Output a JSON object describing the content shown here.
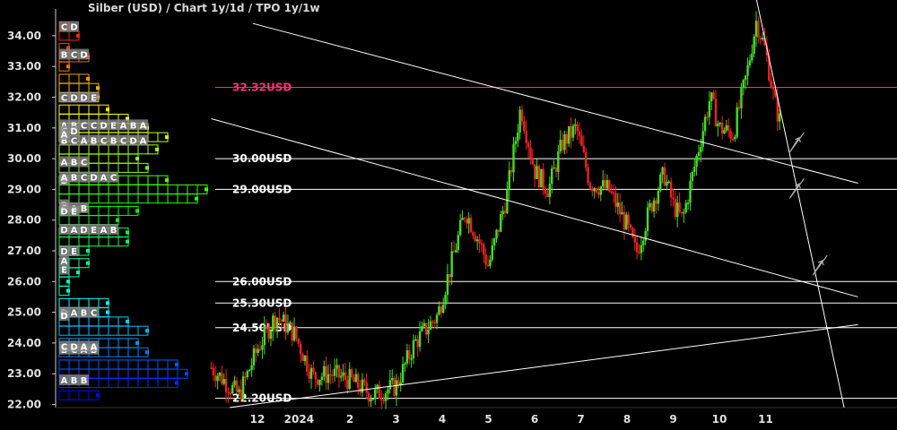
{
  "title": "Silber (USD) /  Chart 1y/1d / TPO 1y/1w",
  "colors": {
    "background": "#000000",
    "axis": "#cccccc",
    "text": "#e0e0e0",
    "resistance": "#ff2d7a",
    "level": "#ffffff",
    "candle_up": "#44dd22",
    "candle_down": "#ee2222",
    "trendline": "#ffffff"
  },
  "chart_data": {
    "type": "candlestick",
    "ylim": [
      21.9,
      35.2
    ],
    "y_ticks": [
      "22.00",
      "23.00",
      "24.00",
      "25.00",
      "26.00",
      "27.00",
      "28.00",
      "29.00",
      "30.00",
      "31.00",
      "32.00",
      "33.00",
      "34.00"
    ],
    "x_ticks": [
      "12",
      "2024",
      "2",
      "3",
      "4",
      "5",
      "6",
      "7",
      "8",
      "9",
      "10",
      "11"
    ],
    "grid": false,
    "levels": [
      {
        "label": "32.32USD",
        "value": 32.32,
        "color": "#ff2d7a"
      },
      {
        "label": "30.00USD",
        "value": 30.0,
        "color": "#ffffff"
      },
      {
        "label": "29.00USD",
        "value": 29.0,
        "color": "#ffffff"
      },
      {
        "label": "26.00USD",
        "value": 26.0,
        "color": "#ffffff"
      },
      {
        "label": "25.30USD",
        "value": 25.3,
        "color": "#ffffff"
      },
      {
        "label": "24.50USD",
        "value": 24.5,
        "color": "#ffffff"
      },
      {
        "label": "22.20USD",
        "value": 22.2,
        "color": "#ffffff"
      }
    ],
    "price_path": [
      {
        "month": 11.0,
        "price": 23.2
      },
      {
        "month": 11.6,
        "price": 22.3
      },
      {
        "month": 12.0,
        "price": 23.8
      },
      {
        "month": 12.4,
        "price": 24.9
      },
      {
        "month": 12.8,
        "price": 24.3
      },
      {
        "month": 13.2,
        "price": 22.9
      },
      {
        "month": 13.6,
        "price": 23.0
      },
      {
        "month": 14.0,
        "price": 22.8
      },
      {
        "month": 14.5,
        "price": 22.3
      },
      {
        "month": 15.0,
        "price": 22.6
      },
      {
        "month": 15.4,
        "price": 24.0
      },
      {
        "month": 15.9,
        "price": 24.9
      },
      {
        "month": 16.2,
        "price": 26.6
      },
      {
        "month": 16.5,
        "price": 28.3
      },
      {
        "month": 16.8,
        "price": 27.3
      },
      {
        "month": 17.0,
        "price": 26.5
      },
      {
        "month": 17.4,
        "price": 28.8
      },
      {
        "month": 17.7,
        "price": 31.7
      },
      {
        "month": 18.0,
        "price": 29.6
      },
      {
        "month": 18.3,
        "price": 29.0
      },
      {
        "month": 18.6,
        "price": 30.5
      },
      {
        "month": 18.9,
        "price": 31.0
      },
      {
        "month": 19.2,
        "price": 29.2
      },
      {
        "month": 19.6,
        "price": 29.0
      },
      {
        "month": 20.0,
        "price": 27.8
      },
      {
        "month": 20.2,
        "price": 26.9
      },
      {
        "month": 20.5,
        "price": 28.4
      },
      {
        "month": 20.8,
        "price": 29.5
      },
      {
        "month": 21.0,
        "price": 28.5
      },
      {
        "month": 21.2,
        "price": 28.0
      },
      {
        "month": 21.5,
        "price": 30.0
      },
      {
        "month": 21.8,
        "price": 32.0
      },
      {
        "month": 22.0,
        "price": 31.0
      },
      {
        "month": 22.3,
        "price": 30.8
      },
      {
        "month": 22.6,
        "price": 32.8
      },
      {
        "month": 22.8,
        "price": 34.5
      },
      {
        "month": 23.0,
        "price": 33.5
      },
      {
        "month": 23.2,
        "price": 31.8
      },
      {
        "month": 23.35,
        "price": 31.0
      }
    ],
    "tpo_profile": [
      {
        "price": 34.3,
        "letters": "C"
      },
      {
        "price": 34.0,
        "letters": "CD"
      },
      {
        "price": 33.6,
        "letters": "C"
      },
      {
        "price": 33.3,
        "letters": "BCD"
      },
      {
        "price": 33.0,
        "letters": "B"
      },
      {
        "price": 32.6,
        "letters": "CDE"
      },
      {
        "price": 32.3,
        "letters": "BCDE"
      },
      {
        "price": 32.0,
        "letters": "CDDE"
      },
      {
        "price": 31.6,
        "letters": "BCDEA"
      },
      {
        "price": 31.3,
        "letters": "ABCDEAB"
      },
      {
        "price": 31.0,
        "letters": "ABCCDEABA"
      },
      {
        "price": 30.7,
        "letters": "BCDAABCBCDA"
      },
      {
        "price": 30.3,
        "letters": "ABCDAABCDA"
      },
      {
        "price": 30.0,
        "letters": "ABCDABCD"
      },
      {
        "price": 29.7,
        "letters": "ABCBCDACA"
      },
      {
        "price": 29.3,
        "letters": "ABCABCDACAB"
      },
      {
        "price": 29.0,
        "letters": "ABCDABCDACABCAB"
      },
      {
        "price": 28.7,
        "letters": "ABCDABCDACABCA"
      },
      {
        "price": 28.3,
        "letters": "BCABDEAB"
      },
      {
        "price": 28.0,
        "letters": "BCABDE"
      },
      {
        "price": 27.6,
        "letters": "ADADEAB"
      },
      {
        "price": 27.3,
        "letters": "ADADEAB"
      },
      {
        "price": 27.0,
        "letters": "ADE"
      },
      {
        "price": 26.6,
        "letters": "ADE"
      },
      {
        "price": 26.3,
        "letters": "AE"
      },
      {
        "price": 26.0,
        "letters": "A"
      },
      {
        "price": 25.7,
        "letters": "A"
      },
      {
        "price": 25.3,
        "letters": "DABCD"
      },
      {
        "price": 25.0,
        "letters": "DABCD"
      },
      {
        "price": 24.7,
        "letters": "DABCDAA"
      },
      {
        "price": 24.4,
        "letters": "BCABCDAAB"
      },
      {
        "price": 24.0,
        "letters": "BCABCDAA"
      },
      {
        "price": 23.7,
        "letters": "BCABCDAAB"
      },
      {
        "price": 23.3,
        "letters": "ABABCDAABCDE"
      },
      {
        "price": 23.0,
        "letters": "ABBCDAABCDEAB"
      },
      {
        "price": 22.7,
        "letters": "ABBCDAABCDEA"
      },
      {
        "price": 22.3,
        "letters": "ABBC"
      }
    ],
    "tpo_visible_labels": [
      {
        "price": 34.3,
        "text": "C"
      },
      {
        "price": 34.3,
        "text": "D"
      },
      {
        "price": 33.4,
        "text": "B"
      },
      {
        "price": 33.4,
        "text": "C"
      },
      {
        "price": 33.4,
        "text": "D"
      },
      {
        "price": 32.0,
        "text": "C"
      },
      {
        "price": 32.0,
        "text": "D"
      },
      {
        "price": 32.0,
        "text": "D"
      },
      {
        "price": 32.0,
        "text": "E"
      },
      {
        "price": 31.1,
        "text": "A"
      },
      {
        "price": 31.1,
        "text": "B"
      },
      {
        "price": 31.1,
        "text": "C"
      },
      {
        "price": 31.1,
        "text": "C"
      },
      {
        "price": 31.1,
        "text": "D"
      },
      {
        "price": 31.1,
        "text": "E"
      },
      {
        "price": 31.1,
        "text": "A"
      },
      {
        "price": 31.1,
        "text": "B"
      },
      {
        "price": 31.1,
        "text": "A"
      },
      {
        "price": 30.6,
        "text": "B"
      },
      {
        "price": 30.9,
        "text": "C"
      },
      {
        "price": 30.9,
        "text": "D"
      },
      {
        "price": 30.8,
        "text": "A"
      },
      {
        "price": 30.6,
        "text": "C"
      },
      {
        "price": 30.6,
        "text": "A"
      },
      {
        "price": 30.6,
        "text": "B"
      },
      {
        "price": 30.6,
        "text": "C"
      },
      {
        "price": 30.6,
        "text": "B"
      },
      {
        "price": 30.6,
        "text": "C"
      },
      {
        "price": 30.6,
        "text": "D"
      },
      {
        "price": 30.6,
        "text": "A"
      },
      {
        "price": 29.9,
        "text": "A"
      },
      {
        "price": 29.9,
        "text": "B"
      },
      {
        "price": 29.9,
        "text": "C"
      },
      {
        "price": 29.3,
        "text": "B"
      },
      {
        "price": 29.4,
        "text": "A"
      },
      {
        "price": 29.4,
        "text": "B"
      },
      {
        "price": 29.4,
        "text": "C"
      },
      {
        "price": 29.4,
        "text": "D"
      },
      {
        "price": 29.4,
        "text": "A"
      },
      {
        "price": 29.4,
        "text": "C"
      },
      {
        "price": 28.5,
        "text": "B"
      },
      {
        "price": 28.4,
        "text": "C"
      },
      {
        "price": 28.4,
        "text": "A"
      },
      {
        "price": 28.4,
        "text": "B"
      },
      {
        "price": 28.3,
        "text": "D"
      },
      {
        "price": 28.3,
        "text": "E"
      },
      {
        "price": 27.7,
        "text": "D"
      },
      {
        "price": 27.7,
        "text": "A"
      },
      {
        "price": 27.7,
        "text": "D"
      },
      {
        "price": 27.7,
        "text": "E"
      },
      {
        "price": 27.7,
        "text": "A"
      },
      {
        "price": 27.7,
        "text": "B"
      },
      {
        "price": 27.0,
        "text": "D"
      },
      {
        "price": 27.0,
        "text": "E"
      },
      {
        "price": 26.7,
        "text": "A"
      },
      {
        "price": 26.4,
        "text": "E"
      },
      {
        "price": 25.0,
        "text": "D"
      },
      {
        "price": 25.0,
        "text": "A"
      },
      {
        "price": 25.0,
        "text": "B"
      },
      {
        "price": 25.0,
        "text": "C"
      },
      {
        "price": 24.9,
        "text": "D"
      },
      {
        "price": 23.8,
        "text": "B"
      },
      {
        "price": 23.8,
        "text": "C"
      },
      {
        "price": 23.8,
        "text": "A"
      },
      {
        "price": 23.8,
        "text": "B"
      },
      {
        "price": 23.9,
        "text": "C"
      },
      {
        "price": 23.9,
        "text": "D"
      },
      {
        "price": 23.9,
        "text": "A"
      },
      {
        "price": 23.9,
        "text": "A"
      },
      {
        "price": 22.8,
        "text": "A"
      },
      {
        "price": 22.8,
        "text": "B"
      },
      {
        "price": 22.8,
        "text": "B"
      }
    ],
    "trendlines": [
      {
        "from": {
          "month": 11.9,
          "price": 34.4
        },
        "to": {
          "month": 25.0,
          "price": 29.2
        }
      },
      {
        "from": {
          "month": 11.0,
          "price": 31.3
        },
        "to": {
          "month": 25.0,
          "price": 25.5
        }
      },
      {
        "from": {
          "month": 11.4,
          "price": 21.9
        },
        "to": {
          "month": 25.0,
          "price": 24.6
        }
      },
      {
        "from": {
          "month": 22.8,
          "price": 35.2
        },
        "to": {
          "month": 24.7,
          "price": 21.9
        }
      }
    ],
    "arrows": [
      {
        "month": 23.6,
        "price": 30.5
      },
      {
        "month": 23.6,
        "price": 29.0
      },
      {
        "month": 24.1,
        "price": 26.5
      }
    ]
  }
}
